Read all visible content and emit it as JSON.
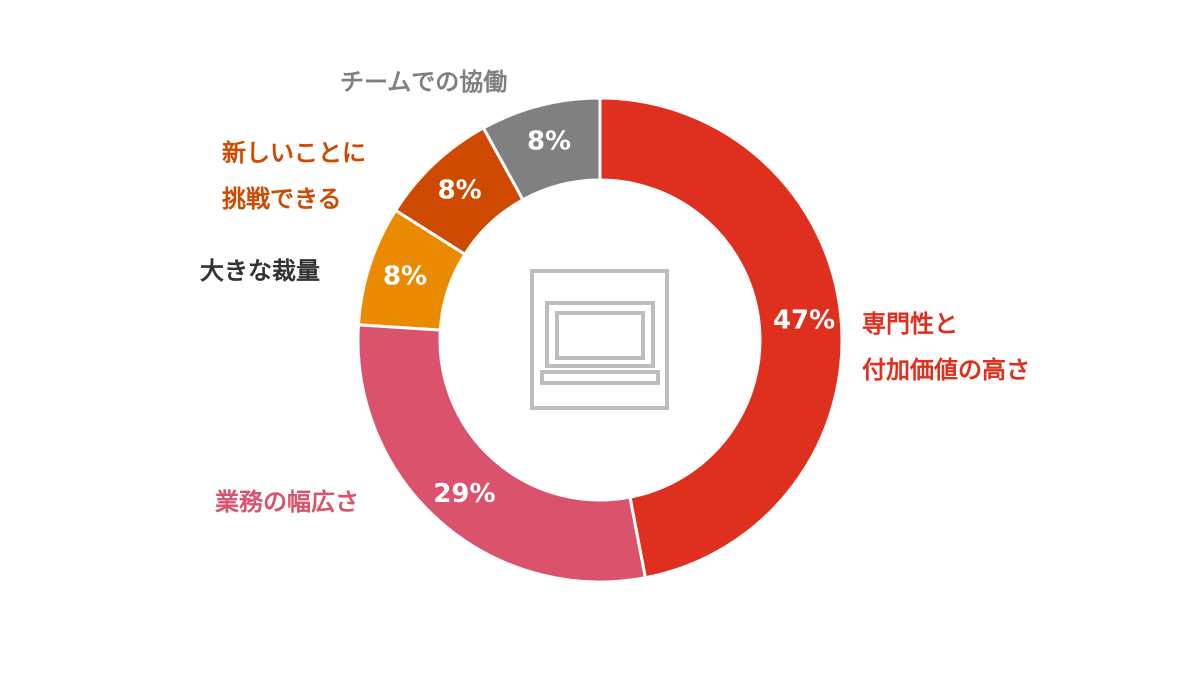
{
  "chart_data": {
    "type": "pie",
    "categories": [
      "専門性と付加価値の高さ",
      "業務の幅広さ",
      "大きな裁量",
      "新しいことに挑戦できる",
      "チームでの協働"
    ],
    "values": [
      47,
      29,
      8,
      8,
      8
    ],
    "value_labels": [
      "47%",
      "29%",
      "8%",
      "8%",
      "8%"
    ],
    "category_label_lines": [
      [
        "専門性と",
        "付加価値の高さ"
      ],
      [
        "業務の幅広さ"
      ],
      [
        "大きな裁量"
      ],
      [
        "新しいことに",
        "挑戦できる"
      ],
      [
        "チームでの協働"
      ]
    ],
    "colors": [
      "#de2f1f",
      "#da526b",
      "#ea8a00",
      "#cd4a00",
      "#808080"
    ],
    "label_colors": [
      "#de2f1f",
      "#da526b",
      "#333333",
      "#cd4a00",
      "#808080"
    ],
    "donut": true,
    "legend": "none",
    "center_icon": "laptop-icon"
  }
}
